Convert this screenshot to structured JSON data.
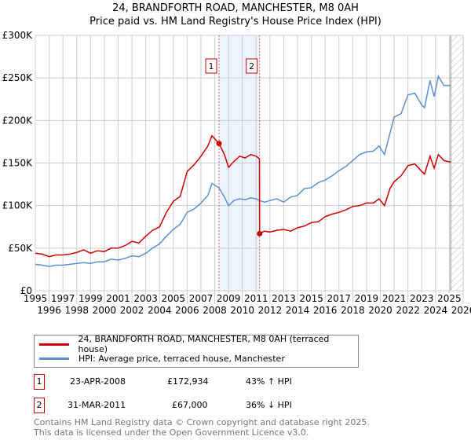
{
  "chart_data": {
    "type": "line",
    "title": "24, BRANDFORTH ROAD, MANCHESTER, M8 0AH",
    "subtitle": "Price paid vs. HM Land Registry's House Price Index (HPI)",
    "xlim": [
      1995,
      2026
    ],
    "ylim": [
      0,
      300000
    ],
    "x_ticks": [
      "1995",
      "1996",
      "1997",
      "1998",
      "1999",
      "2000",
      "2001",
      "2002",
      "2003",
      "2004",
      "2005",
      "2006",
      "2007",
      "2008",
      "2009",
      "2010",
      "2011",
      "2012",
      "2013",
      "2014",
      "2015",
      "2016",
      "2017",
      "2018",
      "2019",
      "2020",
      "2021",
      "2022",
      "2023",
      "2024",
      "2025",
      "2026"
    ],
    "y_ticks": [
      {
        "v": 0,
        "label": "£0"
      },
      {
        "v": 50000,
        "label": "£50K"
      },
      {
        "v": 100000,
        "label": "£100K"
      },
      {
        "v": 150000,
        "label": "£150K"
      },
      {
        "v": 200000,
        "label": "£200K"
      },
      {
        "v": 250000,
        "label": "£250K"
      },
      {
        "v": 300000,
        "label": "£300K"
      }
    ],
    "grid": true,
    "series": [
      {
        "name": "24, BRANDFORTH ROAD, MANCHESTER, M8 0AH (terraced house)",
        "color": "#cc0000",
        "x": [
          1995,
          1995.5,
          1996,
          1996.5,
          1997,
          1997.5,
          1998,
          1998.5,
          1999,
          1999.5,
          2000,
          2000.5,
          2001,
          2001.5,
          2002,
          2002.5,
          2003,
          2003.5,
          2004,
          2004.5,
          2005,
          2005.5,
          2006,
          2006.5,
          2007,
          2007.5,
          2007.8,
          2008.31,
          2008.7,
          2009,
          2009.4,
          2009.8,
          2010.2,
          2010.6,
          2011.0,
          2011.24,
          2011.25,
          2011.6,
          2012,
          2012.5,
          2013,
          2013.5,
          2014,
          2014.5,
          2015,
          2015.5,
          2016,
          2016.5,
          2017,
          2017.5,
          2018,
          2018.5,
          2019,
          2019.5,
          2019.9,
          2020.3,
          2020.7,
          2021,
          2021.5,
          2022,
          2022.5,
          2023,
          2023.2,
          2023.6,
          2023.9,
          2024.2,
          2024.6,
          2025.1
        ],
        "y": [
          44000,
          43000,
          40000,
          42000,
          42000,
          43000,
          45000,
          48000,
          44000,
          47000,
          46000,
          50000,
          50000,
          53000,
          58000,
          56000,
          64000,
          71000,
          75000,
          92000,
          105000,
          111000,
          140000,
          148000,
          158000,
          170000,
          182000,
          172934,
          160000,
          145000,
          152000,
          158000,
          156000,
          160000,
          158000,
          155000,
          67000,
          70000,
          69000,
          71000,
          72000,
          70000,
          74000,
          76000,
          80000,
          81000,
          87000,
          90000,
          92000,
          95000,
          99000,
          100000,
          103000,
          103000,
          108000,
          100000,
          120000,
          128000,
          135000,
          147000,
          149000,
          140000,
          137000,
          158000,
          144000,
          160000,
          153000,
          151000
        ]
      },
      {
        "name": "HPI: Average price, terraced house, Manchester",
        "color": "#5b8fd4",
        "x": [
          1995,
          1995.5,
          1996,
          1996.5,
          1997,
          1997.5,
          1998,
          1998.5,
          1999,
          1999.5,
          2000,
          2000.5,
          2001,
          2001.5,
          2002,
          2002.5,
          2003,
          2003.5,
          2004,
          2004.5,
          2005,
          2005.5,
          2006,
          2006.5,
          2007,
          2007.5,
          2007.8,
          2008.31,
          2008.7,
          2009,
          2009.4,
          2009.8,
          2010.2,
          2010.6,
          2011.0,
          2011.25,
          2011.6,
          2012,
          2012.5,
          2013,
          2013.5,
          2014,
          2014.5,
          2015,
          2015.5,
          2016,
          2016.5,
          2017,
          2017.5,
          2018,
          2018.5,
          2019,
          2019.5,
          2019.9,
          2020.3,
          2020.7,
          2021,
          2021.5,
          2022,
          2022.5,
          2023,
          2023.2,
          2023.6,
          2023.9,
          2024.2,
          2024.6,
          2025.1
        ],
        "y": [
          31000,
          30000,
          28500,
          30000,
          30000,
          31000,
          32000,
          33000,
          32000,
          34000,
          34000,
          37000,
          36000,
          38000,
          41000,
          40000,
          44000,
          50000,
          55000,
          64000,
          72000,
          78000,
          92000,
          96000,
          103000,
          112000,
          126000,
          120900,
          110000,
          100000,
          106000,
          108000,
          107000,
          109000,
          108000,
          106000,
          104000,
          106000,
          108000,
          104000,
          110000,
          112000,
          120000,
          121000,
          127000,
          130000,
          135000,
          141000,
          146000,
          153000,
          160000,
          163000,
          164000,
          170000,
          160000,
          185000,
          204000,
          208000,
          230000,
          232000,
          218000,
          215000,
          247000,
          228000,
          252000,
          241000,
          241000
        ]
      }
    ],
    "events": [
      {
        "id": "1",
        "x": 2008.31,
        "value": 172934
      },
      {
        "id": "2",
        "x": 2011.25,
        "value": 67000
      }
    ],
    "forecast_hatch_from": 2025.1
  },
  "legend": {
    "red_label": "24, BRANDFORTH ROAD, MANCHESTER, M8 0AH (terraced house)",
    "blue_label": "HPI: Average price, terraced house, Manchester"
  },
  "transactions": [
    {
      "id": "1",
      "date": "23-APR-2008",
      "price": "£172,934",
      "hpi": "43% ↑ HPI"
    },
    {
      "id": "2",
      "date": "31-MAR-2011",
      "price": "£67,000",
      "hpi": "36% ↓ HPI"
    }
  ],
  "footer": {
    "line1": "Contains HM Land Registry data © Crown copyright and database right 2025.",
    "line2": "This data is licensed under the Open Government Licence v3.0."
  }
}
